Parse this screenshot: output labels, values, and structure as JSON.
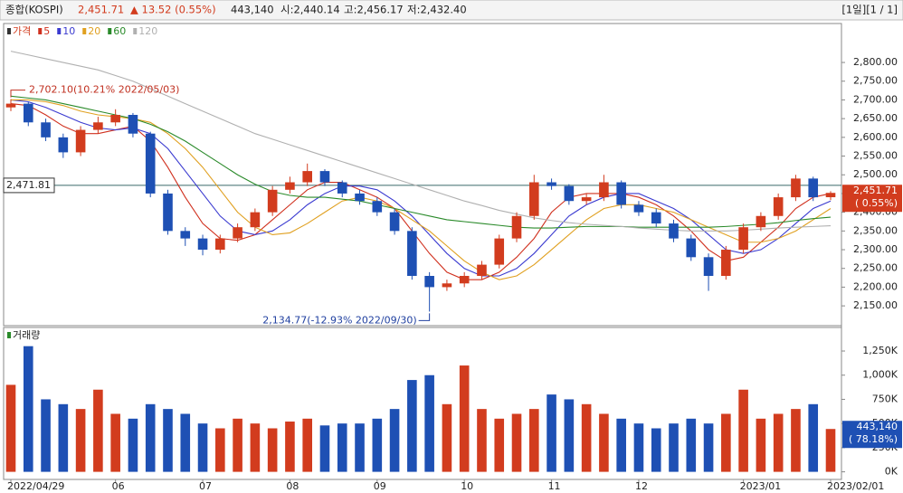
{
  "header": {
    "name": "종합(KOSPI)",
    "price": "2,451.71",
    "change": "▲ 13.52 (0.55%)",
    "volume": "443,140",
    "open": "시:2,440.14",
    "high": "고:2,456.17",
    "low": "저:2,432.40",
    "period": "[1일][1 / 1]"
  },
  "chart_data": [
    {
      "type": "candlestick",
      "name": "가격",
      "up_color": "#d23c1e",
      "down_color": "#1e50b4",
      "categories": [
        "2022/04/29",
        null,
        null,
        null,
        null,
        null,
        "06",
        null,
        null,
        null,
        null,
        "07",
        null,
        null,
        null,
        null,
        "08",
        null,
        null,
        null,
        null,
        "09",
        null,
        null,
        null,
        null,
        "10",
        null,
        null,
        null,
        null,
        "11",
        null,
        null,
        null,
        null,
        "12",
        null,
        null,
        null,
        null,
        null,
        "2023/01",
        null,
        null,
        null,
        null,
        "2023/02/01"
      ],
      "open": [
        2680,
        2690,
        2640,
        2600,
        2560,
        2620,
        2640,
        2660,
        2610,
        2450,
        2350,
        2330,
        2300,
        2330,
        2360,
        2400,
        2460,
        2480,
        2510,
        2480,
        2450,
        2430,
        2400,
        2350,
        2230,
        2200,
        2210,
        2230,
        2260,
        2330,
        2390,
        2480,
        2470,
        2430,
        2440,
        2480,
        2420,
        2400,
        2370,
        2330,
        2280,
        2230,
        2300,
        2360,
        2390,
        2440,
        2490,
        2440.14
      ],
      "high": [
        2702.1,
        2695,
        2650,
        2610,
        2630,
        2655,
        2675,
        2665,
        2615,
        2460,
        2360,
        2340,
        2340,
        2370,
        2410,
        2470,
        2495,
        2530,
        2515,
        2485,
        2460,
        2440,
        2410,
        2360,
        2240,
        2220,
        2240,
        2270,
        2340,
        2400,
        2500,
        2490,
        2475,
        2450,
        2500,
        2485,
        2430,
        2410,
        2380,
        2340,
        2290,
        2310,
        2370,
        2400,
        2450,
        2500,
        2495,
        2456.17
      ],
      "low": [
        2670,
        2630,
        2590,
        2545,
        2550,
        2610,
        2630,
        2600,
        2440,
        2340,
        2310,
        2285,
        2290,
        2320,
        2350,
        2390,
        2450,
        2470,
        2470,
        2440,
        2420,
        2390,
        2340,
        2220,
        2134.77,
        2190,
        2200,
        2220,
        2250,
        2320,
        2380,
        2460,
        2420,
        2420,
        2430,
        2410,
        2390,
        2360,
        2320,
        2270,
        2190,
        2220,
        2290,
        2350,
        2380,
        2430,
        2430,
        2432.4
      ],
      "close": [
        2690,
        2640,
        2600,
        2560,
        2620,
        2640,
        2660,
        2610,
        2450,
        2350,
        2330,
        2300,
        2330,
        2360,
        2400,
        2460,
        2480,
        2510,
        2480,
        2450,
        2430,
        2400,
        2350,
        2230,
        2200,
        2210,
        2230,
        2260,
        2330,
        2390,
        2480,
        2470,
        2430,
        2440,
        2480,
        2420,
        2400,
        2370,
        2330,
        2280,
        2230,
        2300,
        2360,
        2390,
        2440,
        2490,
        2440,
        2451.71
      ],
      "series": [
        {
          "name": "5",
          "color": "#d0301e",
          "values": [
            2690,
            2685,
            2660,
            2630,
            2610,
            2610,
            2620,
            2630,
            2590,
            2520,
            2440,
            2370,
            2330,
            2325,
            2340,
            2380,
            2420,
            2460,
            2480,
            2480,
            2460,
            2440,
            2410,
            2350,
            2290,
            2240,
            2220,
            2220,
            2240,
            2280,
            2330,
            2400,
            2440,
            2450,
            2450,
            2450,
            2440,
            2420,
            2390,
            2350,
            2300,
            2270,
            2280,
            2320,
            2360,
            2410,
            2440,
            2450
          ]
        },
        {
          "name": "10",
          "color": "#3a3ad0",
          "values": [
            2700,
            2695,
            2680,
            2660,
            2640,
            2625,
            2620,
            2625,
            2610,
            2570,
            2510,
            2450,
            2390,
            2350,
            2340,
            2350,
            2380,
            2420,
            2450,
            2470,
            2470,
            2460,
            2430,
            2390,
            2340,
            2290,
            2250,
            2230,
            2230,
            2250,
            2290,
            2340,
            2390,
            2420,
            2440,
            2450,
            2450,
            2430,
            2410,
            2380,
            2340,
            2300,
            2290,
            2300,
            2330,
            2370,
            2410,
            2430
          ]
        },
        {
          "name": "20",
          "color": "#e0a020",
          "values": [
            2700,
            2700,
            2695,
            2685,
            2670,
            2660,
            2655,
            2650,
            2640,
            2610,
            2570,
            2520,
            2460,
            2400,
            2360,
            2340,
            2345,
            2370,
            2400,
            2430,
            2440,
            2430,
            2410,
            2380,
            2350,
            2310,
            2270,
            2240,
            2220,
            2230,
            2260,
            2300,
            2340,
            2380,
            2410,
            2420,
            2420,
            2410,
            2400,
            2380,
            2360,
            2340,
            2320,
            2320,
            2330,
            2350,
            2380,
            2410
          ]
        },
        {
          "name": "60",
          "color": "#2a8a2a",
          "values": [
            2710,
            2705,
            2700,
            2690,
            2680,
            2670,
            2660,
            2650,
            2635,
            2615,
            2590,
            2560,
            2530,
            2500,
            2475,
            2455,
            2445,
            2440,
            2440,
            2435,
            2430,
            2420,
            2410,
            2400,
            2390,
            2380,
            2375,
            2370,
            2365,
            2360,
            2358,
            2358,
            2360,
            2362,
            2362,
            2362,
            2360,
            2360,
            2360,
            2360,
            2360,
            2362,
            2365,
            2368,
            2372,
            2378,
            2383,
            2387
          ]
        },
        {
          "name": "120",
          "color": "#b0b0b0",
          "values": [
            2830,
            2820,
            2810,
            2800,
            2790,
            2780,
            2765,
            2750,
            2730,
            2710,
            2690,
            2670,
            2650,
            2630,
            2610,
            2595,
            2580,
            2565,
            2550,
            2535,
            2520,
            2505,
            2490,
            2475,
            2460,
            2445,
            2430,
            2418,
            2405,
            2395,
            2385,
            2378,
            2372,
            2368,
            2365,
            2362,
            2358,
            2355,
            2352,
            2350,
            2350,
            2350,
            2352,
            2355,
            2358,
            2360,
            2362,
            2364
          ]
        }
      ],
      "ylim": [
        2102,
        2875
      ],
      "yticks": [
        {
          "value": 2150,
          "label": "2,150.00"
        },
        {
          "value": 2200,
          "label": "2,200.00"
        },
        {
          "value": 2250,
          "label": "2,250.00"
        },
        {
          "value": 2300,
          "label": "2,300.00"
        },
        {
          "value": 2350,
          "label": "2,350.00"
        },
        {
          "value": 2400,
          "label": "2,400.00"
        },
        {
          "value": 2450,
          "label": "2,450.00"
        },
        {
          "value": 2500,
          "label": "2,500.00"
        },
        {
          "value": 2550,
          "label": "2,550.00"
        },
        {
          "value": 2600,
          "label": "2,600.00"
        },
        {
          "value": 2650,
          "label": "2,650.00"
        },
        {
          "value": 2700,
          "label": "2,700.00"
        },
        {
          "value": 2750,
          "label": "2,750.00"
        },
        {
          "value": 2800,
          "label": "2,800.00"
        }
      ],
      "reference_line": {
        "value": 2471.81,
        "label": "2,471.81"
      },
      "max_annotation": "2,702.10(10.21% 2022/05/03)",
      "min_annotation": "2,134.77(-12.93% 2022/09/30)",
      "last_label": "2,451.71",
      "last_change": "( 0.55%)"
    },
    {
      "type": "bar",
      "name": "거래량",
      "values": [
        900000,
        1300000,
        750000,
        700000,
        650000,
        850000,
        600000,
        550000,
        700000,
        650000,
        600000,
        500000,
        450000,
        550000,
        500000,
        450000,
        520000,
        550000,
        480000,
        500000,
        500000,
        550000,
        650000,
        950000,
        1000000,
        700000,
        1100000,
        650000,
        550000,
        600000,
        650000,
        800000,
        750000,
        700000,
        600000,
        550000,
        500000,
        450000,
        500000,
        550000,
        500000,
        600000,
        850000,
        550000,
        600000,
        650000,
        700000,
        443140
      ],
      "ylim": [
        -60000,
        1400000
      ],
      "yticks": [
        {
          "value": 0,
          "label": "0K"
        },
        {
          "value": 250000,
          "label": "250K"
        },
        {
          "value": 500000,
          "label": "500K"
        },
        {
          "value": 750000,
          "label": "750K"
        },
        {
          "value": 1000000,
          "label": "1,000K"
        },
        {
          "value": 1250000,
          "label": "1,250K"
        }
      ],
      "last_label": "443,140",
      "last_change": "( 78.18%)"
    }
  ]
}
